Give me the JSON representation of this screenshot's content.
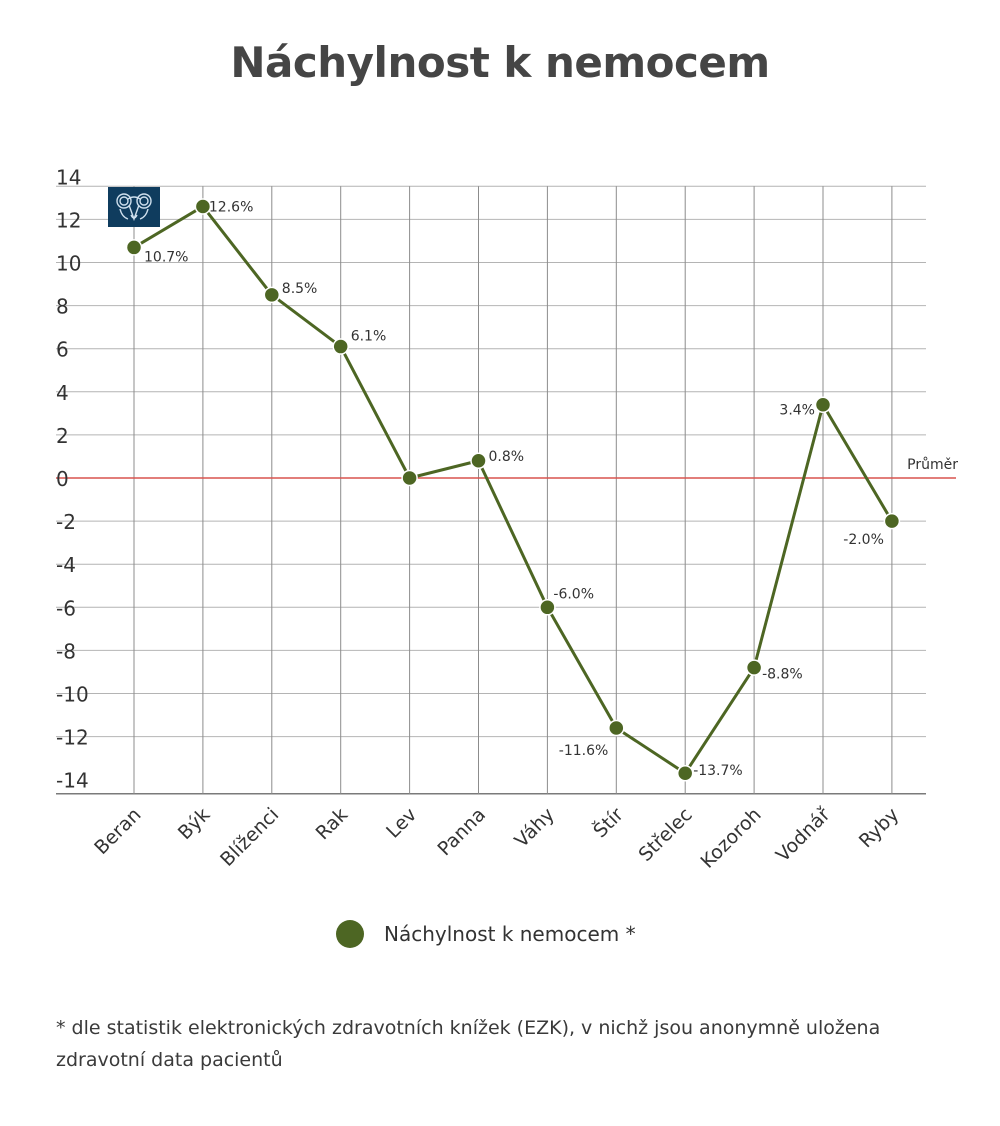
{
  "title": "Náchylnost k nemocem",
  "chart_data": {
    "type": "line",
    "title": "Náchylnost k nemocem",
    "categories": [
      "Beran",
      "Býk",
      "Blíženci",
      "Rak",
      "Lev",
      "Panna",
      "Váhy",
      "Štír",
      "Střelec",
      "Kozoroh",
      "Vodnář",
      "Ryby"
    ],
    "series": [
      {
        "name": "Náchylnost k nemocem *",
        "values": [
          10.7,
          12.6,
          8.5,
          6.1,
          0.0,
          0.8,
          -6.0,
          -11.6,
          -13.7,
          -8.8,
          3.4,
          -2.0
        ],
        "labels": [
          "10.7%",
          "12.6%",
          "8.5%",
          "6.1%",
          "",
          "0.8%",
          "-6.0%",
          "-11.6%",
          "-13.7%",
          "-8.8%",
          "3.4%",
          "-2.0%"
        ],
        "color": "#4d6623"
      }
    ],
    "yticks": [
      "14",
      "12",
      "10",
      "8",
      "6",
      "4",
      "2",
      "0",
      "-2",
      "-4",
      "-6",
      "-8",
      "-10",
      "-12",
      "-14"
    ],
    "ylim": [
      -14,
      14
    ],
    "grid": true,
    "reference_line": {
      "value": 0,
      "label": "Průměr",
      "color": "#d9534f"
    },
    "legend_position": "bottom"
  },
  "legend": {
    "label": "Náchylnost k nemocem *",
    "color": "#4d6623"
  },
  "footnote": "* dle statistik elektronických zdravotních knížek (EZK), v nichž jsou anonymně uložena zdravotní data pacientů",
  "icon": {
    "name": "ram-icon",
    "color": "#0f3c5e"
  }
}
